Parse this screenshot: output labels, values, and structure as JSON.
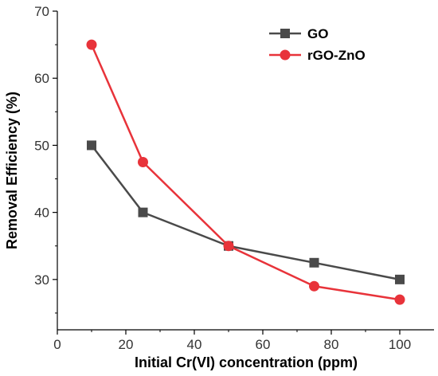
{
  "chart_data": {
    "type": "line",
    "title": "",
    "xlabel": "Initial Cr(VI) concentration (ppm)",
    "ylabel": "Removal Efficiency (%)",
    "xlim": [
      0,
      110
    ],
    "ylim": [
      22.5,
      70
    ],
    "xticks": [
      0,
      20,
      40,
      60,
      80,
      100
    ],
    "yticks": [
      30,
      40,
      50,
      60,
      70
    ],
    "grid": false,
    "legend_position": "top-right",
    "series": [
      {
        "name": "GO",
        "marker": "square",
        "color": "#4a4a4a",
        "x": [
          10,
          25,
          50,
          75,
          100
        ],
        "y": [
          50,
          40,
          35,
          32.5,
          30
        ]
      },
      {
        "name": "rGO-ZnO",
        "marker": "circle",
        "color": "#e8333a",
        "x": [
          10,
          25,
          50,
          75,
          100
        ],
        "y": [
          65,
          47.5,
          35,
          29,
          27
        ]
      }
    ]
  }
}
